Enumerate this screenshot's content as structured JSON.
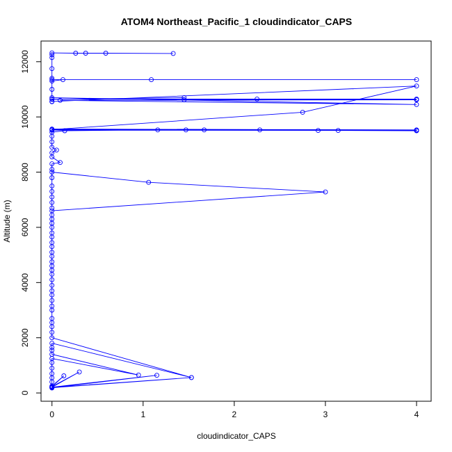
{
  "chart_data": {
    "type": "line",
    "title": "ATOM4 Northeast_Pacific_1 cloudindicator_CAPS",
    "xlabel": "cloudindicator_CAPS",
    "ylabel": "Altitude (m)",
    "xlim": [
      -0.12,
      4.16
    ],
    "ylim": [
      -300,
      12750
    ],
    "xticks": [
      0,
      1,
      2,
      3,
      4
    ],
    "yticks": [
      0,
      2000,
      4000,
      6000,
      8000,
      10000,
      12000
    ],
    "grid": false,
    "series_color": "#0000ff",
    "series": [
      {
        "points": [
          [
            0,
            180
          ],
          [
            0,
            200
          ],
          [
            1.53,
            560
          ],
          [
            0,
            190
          ],
          [
            1.15,
            640
          ],
          [
            0,
            210
          ],
          [
            0.3,
            760
          ],
          [
            0,
            230
          ],
          [
            0.13,
            620
          ],
          [
            0,
            250
          ],
          [
            0,
            400
          ],
          [
            0,
            550
          ],
          [
            0,
            700
          ],
          [
            0,
            900
          ],
          [
            0,
            1100
          ],
          [
            0,
            1250
          ],
          [
            0.95,
            650
          ],
          [
            0,
            1400
          ],
          [
            0,
            1550
          ],
          [
            0,
            1650
          ],
          [
            0,
            1800
          ],
          [
            1.53,
            560
          ],
          [
            0,
            2000
          ],
          [
            0,
            2200
          ],
          [
            0,
            2400
          ],
          [
            0,
            2550
          ],
          [
            0,
            2700
          ],
          [
            0,
            3000
          ],
          [
            0,
            3150
          ],
          [
            0,
            3350
          ],
          [
            0,
            3550
          ],
          [
            0,
            3700
          ],
          [
            0,
            3900
          ],
          [
            0,
            4100
          ],
          [
            0,
            4300
          ],
          [
            0,
            4450
          ],
          [
            0,
            4600
          ],
          [
            0,
            4750
          ],
          [
            0,
            4950
          ],
          [
            0,
            5100
          ],
          [
            0,
            5300
          ],
          [
            0,
            5450
          ],
          [
            0,
            5650
          ],
          [
            0,
            5800
          ],
          [
            0,
            6000
          ],
          [
            0,
            6150
          ],
          [
            0,
            6300
          ],
          [
            0,
            6450
          ],
          [
            0,
            6600
          ],
          [
            3.0,
            7280
          ],
          [
            1.06,
            7630
          ],
          [
            0,
            8000
          ],
          [
            0,
            7800
          ],
          [
            0,
            7500
          ],
          [
            0,
            7300
          ],
          [
            0,
            7100
          ],
          [
            0,
            6900
          ],
          [
            0,
            6700
          ],
          [
            0,
            8100
          ],
          [
            0,
            8300
          ],
          [
            0.09,
            8350
          ],
          [
            0,
            8550
          ],
          [
            0,
            8700
          ],
          [
            0.05,
            8800
          ],
          [
            0,
            8900
          ],
          [
            0,
            9100
          ],
          [
            0,
            9300
          ],
          [
            0,
            9450
          ],
          [
            0.14,
            9500
          ],
          [
            1.16,
            9530
          ],
          [
            1.47,
            9530
          ],
          [
            1.67,
            9530
          ],
          [
            2.28,
            9530
          ],
          [
            2.92,
            9510
          ],
          [
            3.14,
            9510
          ],
          [
            4.0,
            9500
          ],
          [
            4.0,
            9530
          ],
          [
            0,
            9560
          ],
          [
            0,
            9520
          ],
          [
            4.0,
            9510
          ],
          [
            0,
            9540
          ],
          [
            2.75,
            10170
          ],
          [
            4.0,
            11120
          ],
          [
            0,
            10560
          ],
          [
            0,
            10640
          ],
          [
            1.45,
            10700
          ],
          [
            1.45,
            10620
          ],
          [
            2.25,
            10650
          ],
          [
            4.0,
            10650
          ],
          [
            0,
            10650
          ],
          [
            4.0,
            10620
          ],
          [
            0.09,
            10600
          ],
          [
            4.0,
            10450
          ],
          [
            0,
            10700
          ],
          [
            0,
            10550
          ],
          [
            0,
            11000
          ],
          [
            0,
            11300
          ],
          [
            0.12,
            11350
          ],
          [
            1.09,
            11350
          ],
          [
            4.0,
            11350
          ],
          [
            0,
            11350
          ],
          [
            0,
            11400
          ],
          [
            0,
            11750
          ],
          [
            0,
            12150
          ],
          [
            0,
            12250
          ],
          [
            0,
            12320
          ],
          [
            0.26,
            12310
          ],
          [
            0.37,
            12310
          ],
          [
            0.59,
            12310
          ],
          [
            1.33,
            12300
          ]
        ]
      }
    ]
  }
}
